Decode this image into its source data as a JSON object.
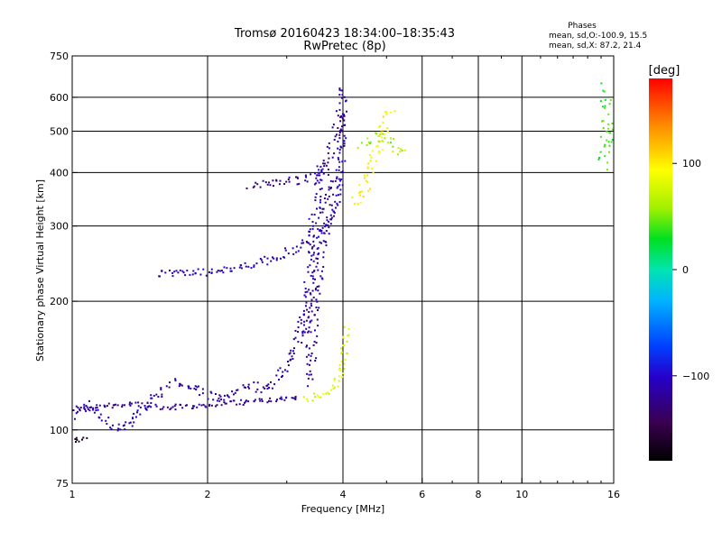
{
  "header": {
    "title_line1": "Tromsø 20160423 18:34:00–18:35:43",
    "title_line2": "RwPretec (8p)"
  },
  "stats": {
    "heading": "Phases",
    "line_o": "mean, sd,O:-100.9, 15.5",
    "line_x": "mean, sd,X:  87.2, 21.4"
  },
  "colorbar": {
    "unit": "[deg]",
    "ticks": [
      {
        "label": "100",
        "value": 100
      },
      {
        "label": "0",
        "value": 0
      },
      {
        "label": "−100",
        "value": -100
      }
    ],
    "range": [
      -180,
      180
    ]
  },
  "chart_data": {
    "type": "scatter",
    "title": "Tromsø 20160423 18:34:00–18:35:43",
    "subtitle": "RwPretec (8p)",
    "xlabel": "Frequency [MHz]",
    "ylabel": "Stationary phase Virtual Height [km]",
    "xscale": "log",
    "yscale": "log",
    "xlim": [
      1,
      16
    ],
    "ylim": [
      75,
      750
    ],
    "grid": true,
    "xticks": [
      {
        "label": "1",
        "value": 1
      },
      {
        "label": "2",
        "value": 2
      },
      {
        "label": "4",
        "value": 4
      },
      {
        "label": "6",
        "value": 6
      },
      {
        "label": "8",
        "value": 8
      },
      {
        "label": "10",
        "value": 10
      },
      {
        "label": "16",
        "value": 16
      }
    ],
    "xgrid": [
      2,
      4,
      6,
      8,
      10
    ],
    "yticks": [
      {
        "label": "75",
        "value": 75
      },
      {
        "label": "100",
        "value": 100
      },
      {
        "label": "200",
        "value": 200
      },
      {
        "label": "300",
        "value": 300
      },
      {
        "label": "400",
        "value": 400
      },
      {
        "label": "500",
        "value": 500
      },
      {
        "label": "600",
        "value": 600
      },
      {
        "label": "750",
        "value": 750
      }
    ],
    "ygrid": [
      100,
      200,
      300,
      400,
      500,
      600
    ],
    "color_encoding": "phase [deg]",
    "traces": [
      {
        "phase": -120,
        "jitter": 3,
        "points": [
          [
            1.0,
            112
          ],
          [
            1.08,
            112
          ],
          [
            1.2,
            114
          ],
          [
            1.35,
            115
          ],
          [
            1.5,
            113
          ],
          [
            1.7,
            113
          ],
          [
            1.9,
            114
          ],
          [
            2.1,
            115
          ],
          [
            2.4,
            116
          ],
          [
            2.7,
            117
          ],
          [
            3.0,
            118
          ],
          [
            3.2,
            120
          ]
        ]
      },
      {
        "phase": -110,
        "jitter": 4,
        "points": [
          [
            1.0,
            108
          ],
          [
            1.05,
            112
          ],
          [
            1.1,
            115
          ],
          [
            1.15,
            110
          ],
          [
            1.2,
            103
          ],
          [
            1.28,
            101
          ],
          [
            1.35,
            103
          ],
          [
            1.4,
            108
          ],
          [
            1.5,
            118
          ],
          [
            1.6,
            124
          ]
        ]
      },
      {
        "phase": -170,
        "jitter": 2,
        "points": [
          [
            1.0,
            96
          ],
          [
            1.03,
            94
          ],
          [
            1.06,
            96
          ],
          [
            1.08,
            97
          ]
        ]
      },
      {
        "phase": -115,
        "jitter": 5,
        "points": [
          [
            1.6,
            128
          ],
          [
            1.75,
            130
          ],
          [
            1.9,
            125
          ],
          [
            2.0,
            120
          ],
          [
            2.2,
            118
          ],
          [
            2.5,
            127
          ],
          [
            2.7,
            123
          ],
          [
            2.9,
            135
          ],
          [
            3.1,
            150
          ],
          [
            3.2,
            170
          ],
          [
            3.3,
            190
          ]
        ]
      },
      {
        "phase": -110,
        "jitter": 4,
        "points": [
          [
            1.55,
            233
          ],
          [
            1.7,
            232
          ],
          [
            1.85,
            233
          ],
          [
            2.0,
            234
          ],
          [
            2.2,
            236
          ],
          [
            2.4,
            240
          ],
          [
            2.6,
            246
          ],
          [
            2.8,
            253
          ],
          [
            3.0,
            260
          ],
          [
            3.2,
            268
          ],
          [
            3.4,
            280
          ],
          [
            3.6,
            295
          ],
          [
            3.8,
            320
          ],
          [
            3.9,
            350
          ],
          [
            3.95,
            400
          ],
          [
            4.0,
            480
          ],
          [
            4.0,
            580
          ],
          [
            4.0,
            640
          ]
        ]
      },
      {
        "phase": -125,
        "jitter": 5,
        "points": [
          [
            2.5,
            375
          ],
          [
            2.7,
            378
          ],
          [
            2.9,
            380
          ],
          [
            3.1,
            383
          ],
          [
            3.3,
            385
          ],
          [
            3.5,
            390
          ],
          [
            3.7,
            420
          ],
          [
            3.85,
            480
          ],
          [
            3.95,
            560
          ]
        ]
      },
      {
        "phase": -120,
        "jitter": 6,
        "points": [
          [
            3.4,
            130
          ],
          [
            3.4,
            160
          ],
          [
            3.45,
            190
          ],
          [
            3.5,
            220
          ],
          [
            3.55,
            250
          ],
          [
            3.6,
            280
          ],
          [
            3.65,
            300
          ],
          [
            3.7,
            330
          ],
          [
            3.75,
            360
          ],
          [
            3.8,
            380
          ],
          [
            3.85,
            400
          ]
        ]
      },
      {
        "phase": -105,
        "jitter": 6,
        "points": [
          [
            3.3,
            170
          ],
          [
            3.35,
            200
          ],
          [
            3.4,
            250
          ],
          [
            3.45,
            300
          ],
          [
            3.5,
            350
          ],
          [
            3.55,
            400
          ],
          [
            3.6,
            420
          ]
        ]
      },
      {
        "phase": 80,
        "jitter": 4,
        "points": [
          [
            3.3,
            118
          ],
          [
            3.45,
            120
          ],
          [
            3.6,
            122
          ],
          [
            3.75,
            124
          ],
          [
            3.85,
            128
          ],
          [
            3.95,
            135
          ],
          [
            4.0,
            145
          ],
          [
            4.05,
            160
          ],
          [
            4.1,
            175
          ]
        ]
      },
      {
        "phase": 95,
        "jitter": 6,
        "points": [
          [
            4.2,
            345
          ],
          [
            4.35,
            350
          ],
          [
            4.45,
            365
          ],
          [
            4.55,
            390
          ],
          [
            4.65,
            430
          ],
          [
            4.8,
            470
          ],
          [
            4.9,
            500
          ],
          [
            5.0,
            540
          ],
          [
            5.1,
            570
          ]
        ]
      },
      {
        "phase": 60,
        "jitter": 6,
        "points": [
          [
            4.4,
            470
          ],
          [
            4.6,
            480
          ],
          [
            4.8,
            490
          ],
          [
            5.0,
            480
          ],
          [
            5.2,
            460
          ],
          [
            5.4,
            450
          ],
          [
            5.6,
            440
          ]
        ]
      },
      {
        "phase": 40,
        "jitter": 8,
        "points": [
          [
            15.3,
            420
          ],
          [
            15.4,
            470
          ],
          [
            15.5,
            520
          ],
          [
            15.5,
            560
          ],
          [
            15.5,
            640
          ]
        ]
      }
    ]
  }
}
